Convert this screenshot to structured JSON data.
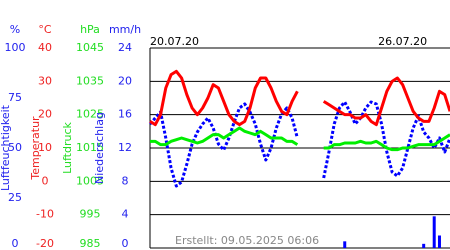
{
  "chart_data": {
    "type": "multi-axis",
    "footer": "Erstellt: 09.05.2025 06:06",
    "categories": [
      "20.07.20",
      null,
      null,
      null,
      null,
      null,
      null,
      null,
      null,
      null,
      null,
      null,
      null,
      null,
      null,
      null,
      null,
      null,
      null,
      null,
      null,
      null,
      null,
      null,
      null,
      null,
      null,
      null,
      null,
      null,
      null,
      null,
      null,
      null,
      null,
      null,
      null,
      null,
      null,
      null,
      null,
      null,
      null,
      null,
      null,
      null,
      null,
      null,
      "26.07.20",
      null,
      null,
      null,
      null,
      null,
      null,
      null,
      null,
      null
    ],
    "axes": [
      {
        "title": "Luftfeuchtigkeit",
        "unit": "%",
        "color": "#2222ee",
        "ylim": [
          0,
          100
        ],
        "yticks": [
          0,
          25,
          50,
          75,
          100
        ]
      },
      {
        "title": "Temperatur",
        "unit": "°C",
        "color": "#ee2222",
        "ylim": [
          -20,
          40
        ],
        "yticks": [
          -20,
          -10,
          0,
          10,
          20,
          30,
          40
        ],
        "grid": true
      },
      {
        "title": "Luftdruck",
        "unit": "hPa",
        "color": "#22dd22",
        "ylim": [
          985,
          1045
        ],
        "yticks": [
          985,
          995,
          1005,
          1015,
          1025,
          1035,
          1045
        ]
      },
      {
        "title": "Niederschlag",
        "unit": "mm/h",
        "color": "#2222ee",
        "ylim": [
          0,
          24
        ],
        "yticks": [
          0,
          4,
          8,
          12,
          16,
          20,
          24
        ]
      }
    ],
    "series": [
      {
        "type": "dashed-line",
        "axis": 0,
        "color": "#0000ff",
        "values": [
          62,
          65,
          68,
          55,
          40,
          31,
          33,
          42,
          52,
          58,
          62,
          65,
          60,
          52,
          49,
          55,
          63,
          70,
          72,
          68,
          62,
          52,
          44,
          50,
          60,
          67,
          70,
          65,
          55,
          null,
          null,
          null,
          null,
          35,
          48,
          62,
          70,
          73,
          68,
          62,
          65,
          70,
          73,
          72,
          62,
          48,
          38,
          36,
          40,
          50,
          60,
          66,
          58,
          55,
          50,
          55,
          48,
          55
        ]
      },
      {
        "type": "line",
        "axis": 1,
        "color": "#ff0000",
        "values": [
          18,
          17,
          20,
          28,
          32,
          33,
          31,
          26,
          22,
          20,
          22,
          25,
          29,
          28,
          24,
          20,
          18,
          17,
          18,
          22,
          28,
          31,
          31,
          28,
          24,
          21,
          20,
          24,
          27,
          null,
          null,
          null,
          null,
          24,
          23,
          22,
          21,
          20,
          20,
          19,
          19,
          20,
          18,
          17,
          22,
          27,
          30,
          31,
          29,
          25,
          21,
          19,
          18,
          18,
          22,
          27,
          26,
          21
        ]
      },
      {
        "type": "line",
        "axis": 2,
        "color": "#00ee00",
        "values": [
          1017,
          1017,
          1016,
          1016,
          1017,
          1017.5,
          1018,
          1017.5,
          1017,
          1016.5,
          1017,
          1018,
          1019,
          1019,
          1018,
          1019,
          1020,
          1021,
          1020,
          1019.5,
          1019,
          1020,
          1019,
          1018,
          1018,
          1018,
          1017,
          1017,
          1016,
          null,
          null,
          null,
          null,
          1015,
          1015,
          1016,
          1016,
          1016.5,
          1016.5,
          1016.5,
          1017,
          1016.5,
          1016.5,
          1017,
          1016,
          1015,
          1014.5,
          1014.5,
          1015,
          1015,
          1015.5,
          1016,
          1016,
          1016,
          1016,
          1017,
          1018,
          1019
        ]
      },
      {
        "type": "bar",
        "axis": 3,
        "color": "#0000ff",
        "values": [
          0,
          0,
          0,
          0,
          0,
          0,
          0,
          0,
          0,
          0,
          0,
          0,
          0,
          0,
          0,
          0,
          0,
          0,
          0,
          0,
          0,
          0,
          0,
          0,
          0,
          0,
          0,
          0,
          0,
          null,
          null,
          null,
          null,
          0,
          0,
          0,
          0,
          0.8,
          0,
          0,
          0,
          0,
          0,
          0,
          0,
          0,
          0,
          0,
          0,
          0,
          0,
          0,
          0.5,
          0,
          3.8,
          1.5,
          0,
          0
        ]
      }
    ]
  }
}
